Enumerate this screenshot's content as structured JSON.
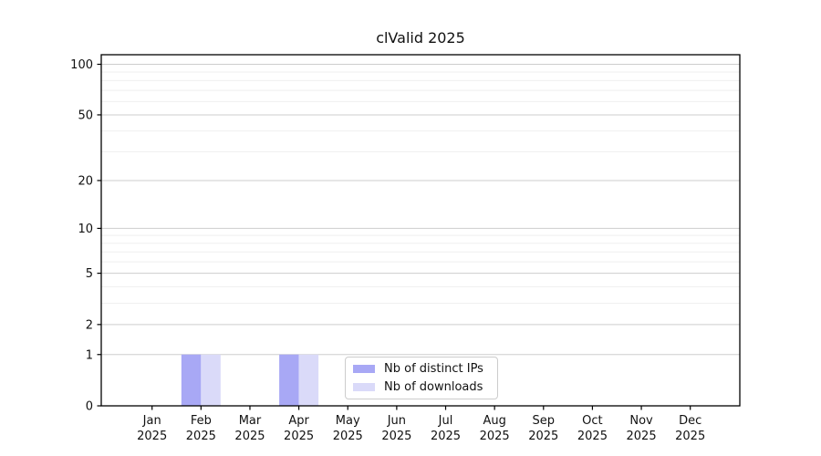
{
  "chart_data": {
    "type": "bar",
    "title": "clValid 2025",
    "categories": [
      "Jan",
      "Feb",
      "Mar",
      "Apr",
      "May",
      "Jun",
      "Jul",
      "Aug",
      "Sep",
      "Oct",
      "Nov",
      "Dec"
    ],
    "category_year": "2025",
    "series": [
      {
        "name": "Nb of distinct IPs",
        "color": "#a8a8f5",
        "values": [
          0,
          1,
          0,
          1,
          0,
          0,
          0,
          0,
          0,
          0,
          0,
          0
        ]
      },
      {
        "name": "Nb of downloads",
        "color": "#dadaf9",
        "values": [
          0,
          1,
          0,
          1,
          0,
          0,
          0,
          0,
          0,
          0,
          0,
          0
        ]
      }
    ],
    "y_ticks": [
      0,
      1,
      2,
      5,
      10,
      20,
      50,
      100
    ],
    "y_minor_ticks": [
      3,
      4,
      6,
      7,
      8,
      9,
      30,
      40,
      60,
      70,
      80,
      90
    ],
    "scale": "log1p",
    "ylim": [
      0,
      115
    ],
    "grid": true,
    "legend_position": "lower center",
    "colors": {
      "axis": "#000000",
      "text": "#111111",
      "grid_major": "#cdcdcd",
      "grid_minor": "#efefef",
      "background": "#ffffff"
    }
  }
}
